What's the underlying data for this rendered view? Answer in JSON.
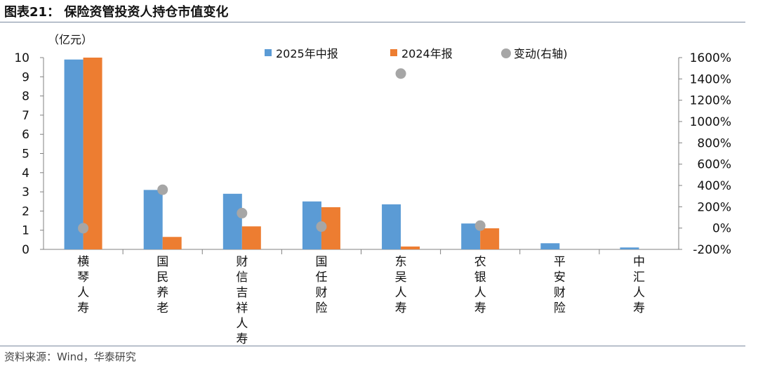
{
  "title": "图表21：  保险资管投资人持仓市值变化",
  "source": "资料来源：Wind，华泰研究",
  "colors": {
    "series_2025": "#5b9bd5",
    "series_2024": "#ed7d31",
    "change": "#a6a6a6",
    "axis": "#808080",
    "text": "#111111"
  },
  "chart_data": {
    "type": "bar",
    "unit_label": "（亿元）",
    "categories": [
      "横琴人寿",
      "国民养老",
      "财信吉祥人寿",
      "国任财险",
      "东吴人寿",
      "农银人寿",
      "平安财险",
      "中汇人寿"
    ],
    "series": [
      {
        "name": "2025年中报",
        "type": "bar",
        "axis": "left",
        "values": [
          9.9,
          3.1,
          2.9,
          2.5,
          2.35,
          1.35,
          0.32,
          0.1
        ]
      },
      {
        "name": "2024年报",
        "type": "bar",
        "axis": "left",
        "values": [
          10.0,
          0.65,
          1.2,
          2.2,
          0.15,
          1.1,
          0,
          0
        ]
      },
      {
        "name": "变动(右轴)",
        "type": "scatter",
        "axis": "right",
        "values": [
          -1,
          360,
          140,
          14,
          1450,
          23,
          null,
          null
        ]
      }
    ],
    "y_left": {
      "min": 0,
      "max": 10,
      "ticks": [
        "0",
        "1",
        "2",
        "3",
        "4",
        "5",
        "6",
        "7",
        "8",
        "9",
        "10"
      ]
    },
    "y_right": {
      "min": -200,
      "max": 1600,
      "ticks": [
        "-200%",
        "0%",
        "200%",
        "400%",
        "600%",
        "800%",
        "1000%",
        "1200%",
        "1400%",
        "1600%"
      ]
    },
    "legend": "top",
    "grid": false
  }
}
